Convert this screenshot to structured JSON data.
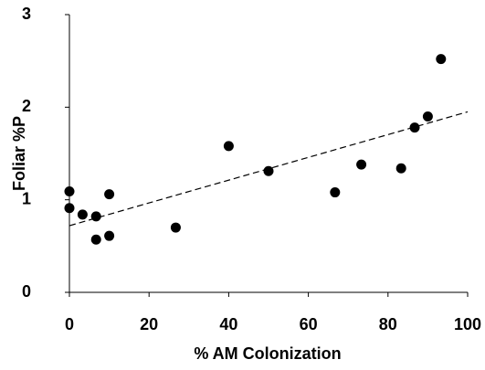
{
  "chart_data": {
    "type": "scatter",
    "xlabel": "% AM Colonization",
    "ylabel": "Foliar %P",
    "x": [
      0,
      0,
      3.3,
      6.7,
      6.7,
      10,
      10,
      26.7,
      40,
      50,
      66.7,
      73.3,
      83.3,
      86.7,
      90,
      93.3
    ],
    "values": [
      1.09,
      0.91,
      0.84,
      0.82,
      0.57,
      1.06,
      0.61,
      0.7,
      1.58,
      1.31,
      1.08,
      1.38,
      1.34,
      1.78,
      1.9,
      2.52
    ],
    "color": "#000000",
    "trendline": {
      "x": [
        0,
        100
      ],
      "y": [
        0.72,
        1.95
      ],
      "color": "#000000",
      "dashed": true
    },
    "xlim": [
      0,
      100
    ],
    "ylim": [
      0,
      3
    ],
    "xticks": [
      0,
      20,
      40,
      60,
      80,
      100
    ],
    "yticks": [
      0,
      1,
      2,
      3
    ]
  }
}
